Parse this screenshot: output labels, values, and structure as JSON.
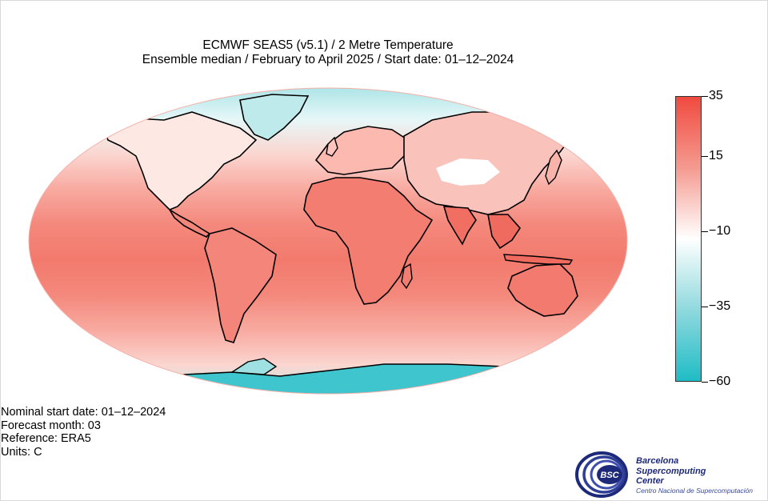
{
  "title": {
    "line1": "ECMWF SEAS5 (v5.1) / 2 Metre Temperature",
    "line2": "Ensemble median / February to April 2025  / Start date: 01–12–2024"
  },
  "metadata": {
    "nominal_start": "Nominal start date: 01–12–2024",
    "forecast_month": "Forecast month: 03",
    "reference": "Reference: ERA5",
    "units": "Units: C"
  },
  "colorbar": {
    "min": -60,
    "max": 35,
    "tick_values": [
      35,
      15,
      -10,
      -35,
      -60
    ],
    "tick_labels": [
      "35",
      "15",
      "−10",
      "−35",
      "−60"
    ],
    "colors": {
      "hot": "#f04a3f",
      "warm": "#f59a90",
      "neutral": "#ffffff",
      "cool": "#8fd9de",
      "cold": "#1fbcc5"
    }
  },
  "map": {
    "projection": "Robinson",
    "ocean_band_colors": [
      "#a7e3e6",
      "#e6f7f8",
      "#fbd6d0",
      "#f8aaa0",
      "#f4887c",
      "#f27a6d",
      "#f4887c",
      "#f8aaa0",
      "#fbd6d0",
      "#b8e8ea"
    ]
  },
  "logo": {
    "line1": "Barcelona",
    "line2": "Supercomputing",
    "line3": "Center",
    "subtitle": "Centro Nacional de Supercomputación",
    "badge": "BSC"
  }
}
